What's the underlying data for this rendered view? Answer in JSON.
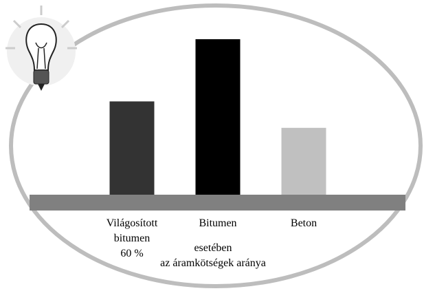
{
  "chart_data": {
    "type": "bar",
    "categories": [
      "Világosított\nbitumen\n60 %",
      "Bitumen",
      "Beton"
    ],
    "values": [
      60,
      100,
      43
    ],
    "colors": [
      "#333333",
      "#000000",
      "#c0c0c0"
    ],
    "ylim": [
      0,
      100
    ],
    "caption": "esetében\naz áramkötségek aránya"
  }
}
